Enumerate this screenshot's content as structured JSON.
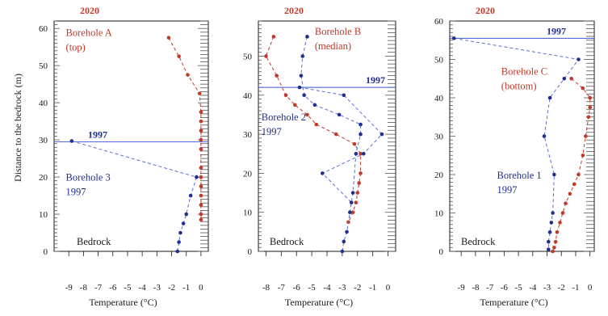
{
  "colors": {
    "red": "#c0392b",
    "blue": "#1f2f8f",
    "blue_dashed": "#5a6fd6",
    "axis": "#1a1a1a",
    "grid_minor": "#555555"
  },
  "shared": {
    "ylabel": "Distance to the bedrock (m)",
    "xlabel": "Temperature (°C)",
    "bedrock_label": "Bedrock"
  },
  "chart_data": [
    {
      "type": "line",
      "panel": "left",
      "top_year": "2020",
      "xlim": [
        -10,
        0.5
      ],
      "ylim": [
        0,
        62
      ],
      "x_ticks": [
        -9,
        -8,
        -7,
        -6,
        -5,
        -4,
        -3,
        -2,
        -1,
        0
      ],
      "y_ticks": [
        0,
        10,
        20,
        30,
        40,
        50,
        60
      ],
      "show_y_tick_labels": true,
      "hline": {
        "y": 29.5,
        "label": "1997"
      },
      "labels": [
        {
          "text": [
            "Borehole A",
            "(top)"
          ],
          "color": "red",
          "x": -9.2,
          "y": 58
        },
        {
          "text": [
            "Borehole 3",
            "1997"
          ],
          "color": "blue",
          "x": -9.2,
          "y": 19
        }
      ],
      "series": [
        {
          "color": "red",
          "x": [
            -2.2,
            -1.5,
            -0.9,
            -0.1,
            0.0,
            0.0,
            0.0,
            0.0,
            0.0,
            0.0,
            0.0,
            0.0,
            0.0,
            0.0,
            0.0,
            0.0
          ],
          "y": [
            57.5,
            52.5,
            47.5,
            42.5,
            37.5,
            35,
            32.5,
            30,
            27.5,
            22.5,
            20,
            17.5,
            15,
            12.5,
            10,
            8.5
          ]
        },
        {
          "color": "blue",
          "x": [
            -8.8,
            -0.3,
            -0.7,
            -1.0,
            -1.2,
            -1.4,
            -1.5,
            -1.6
          ],
          "y": [
            29.7,
            20,
            15,
            10,
            7.5,
            5,
            2.5,
            0
          ]
        }
      ]
    },
    {
      "type": "line",
      "panel": "middle",
      "top_year": "2020",
      "xlim": [
        -8.5,
        0.5
      ],
      "ylim": [
        0,
        59
      ],
      "x_ticks": [
        -8,
        -7,
        -6,
        -5,
        -4,
        -3,
        -2,
        -1,
        0
      ],
      "y_ticks": [
        0,
        10,
        20,
        30,
        40,
        50
      ],
      "show_y_tick_labels": true,
      "hline": {
        "y": 42,
        "label": "1997"
      },
      "labels": [
        {
          "text": [
            "Borehole B",
            "(median)"
          ],
          "color": "red",
          "x": -4.8,
          "y": 55.5
        },
        {
          "text": [
            "Borehole 2",
            "1997"
          ],
          "color": "blue",
          "x": -8.3,
          "y": 33.5
        }
      ],
      "series": [
        {
          "color": "red",
          "x": [
            -7.5,
            -8.0,
            -7.3,
            -6.7,
            -6.1,
            -5.3,
            -4.7,
            -3.4,
            -2.2,
            -1.8,
            -1.8,
            -1.9,
            -2.0,
            -2.1,
            -2.3,
            -2.6
          ],
          "y": [
            55,
            50,
            45,
            40,
            37.5,
            35,
            32.5,
            30,
            27.5,
            25,
            20,
            17.5,
            15,
            12.5,
            10,
            7.5
          ]
        },
        {
          "color": "blue",
          "x": [
            -5.3,
            -5.6,
            -5.7,
            -5.5,
            -4.8,
            -3.2,
            -1.8,
            -1.8,
            -2.1,
            -2.3,
            -2.5,
            -2.7,
            -2.9,
            -3.0
          ],
          "y": [
            55,
            50,
            45,
            40,
            37.5,
            35,
            32.5,
            30,
            25,
            15,
            10,
            5,
            2.5,
            0
          ]
        },
        {
          "color": "blue",
          "x": [
            -5.8,
            -2.9,
            -0.4,
            -1.6,
            -4.3,
            -2.4
          ],
          "y": [
            42,
            40,
            30,
            25,
            20,
            12.5
          ]
        }
      ]
    },
    {
      "type": "line",
      "panel": "right",
      "top_year": "2020",
      "xlim": [
        -9.8,
        0.3
      ],
      "ylim": [
        0,
        60
      ],
      "x_ticks": [
        -9,
        -8,
        -7,
        -6,
        -5,
        -4,
        -3,
        -2,
        -1,
        0
      ],
      "y_ticks": [
        0,
        10,
        20,
        30,
        40,
        50,
        60
      ],
      "show_y_tick_labels": true,
      "hline": {
        "y": 55.5,
        "label": "1997"
      },
      "labels": [
        {
          "text": [
            "Borehole C",
            "(bottom)"
          ],
          "color": "red",
          "x": -6.2,
          "y": 46
        },
        {
          "text": [
            "Borehole 1",
            "1997"
          ],
          "color": "blue",
          "x": -6.5,
          "y": 19
        }
      ],
      "series": [
        {
          "color": "red",
          "x": [
            -1.3,
            -0.5,
            0.0,
            0.0,
            -0.1,
            -0.3,
            -0.5,
            -0.8,
            -1.1,
            -1.4,
            -1.7,
            -1.9,
            -2.1,
            -2.3,
            -2.4,
            -2.5,
            -2.6
          ],
          "y": [
            45,
            42.5,
            40,
            37.5,
            35,
            30,
            25,
            20,
            17.5,
            15,
            12.5,
            10,
            7.5,
            5,
            2.5,
            1,
            0
          ]
        },
        {
          "color": "blue",
          "x": [
            -9.5,
            -0.8,
            -1.8,
            -2.8,
            -3.2,
            -2.5,
            -2.6,
            -2.7,
            -2.8,
            -2.9,
            -2.9
          ],
          "y": [
            55.5,
            50,
            45,
            40,
            30,
            20,
            10,
            7.5,
            5,
            2.5,
            0.5
          ]
        }
      ]
    }
  ]
}
